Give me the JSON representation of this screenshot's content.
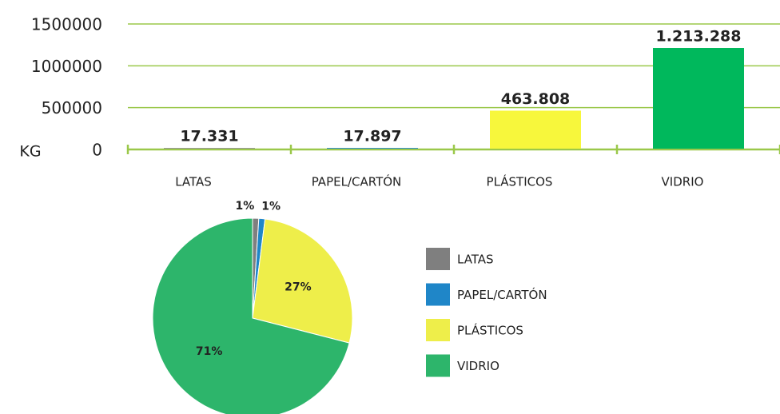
{
  "chart_data": [
    {
      "type": "bar",
      "y_label": "KG",
      "categories": [
        "LATAS",
        "PAPEL/CARTÓN",
        "PLÁSTICOS",
        "VIDRIO"
      ],
      "values": [
        17331,
        17897,
        463808,
        1213288
      ],
      "value_labels": [
        "17.331",
        "17.897",
        "463.808",
        "1.213.288"
      ],
      "colors": [
        "#808080",
        "#1a7fc1",
        "#f7f73c",
        "#00b85c"
      ],
      "ylim": [
        0,
        1500000
      ],
      "yticks": [
        0,
        500000,
        1000000,
        1500000
      ],
      "grid": true,
      "grid_color": "#9bc84a"
    },
    {
      "type": "pie",
      "categories": [
        "LATAS",
        "PAPEL/CARTÓN",
        "PLÁSTICOS",
        "VIDRIO"
      ],
      "values": [
        1,
        1,
        27,
        71
      ],
      "value_labels": [
        "1%",
        "1%",
        "27%",
        "71%"
      ],
      "colors": [
        "#7f7f7f",
        "#1f86c8",
        "#eeee4a",
        "#2db56b"
      ],
      "legend": "right"
    }
  ]
}
